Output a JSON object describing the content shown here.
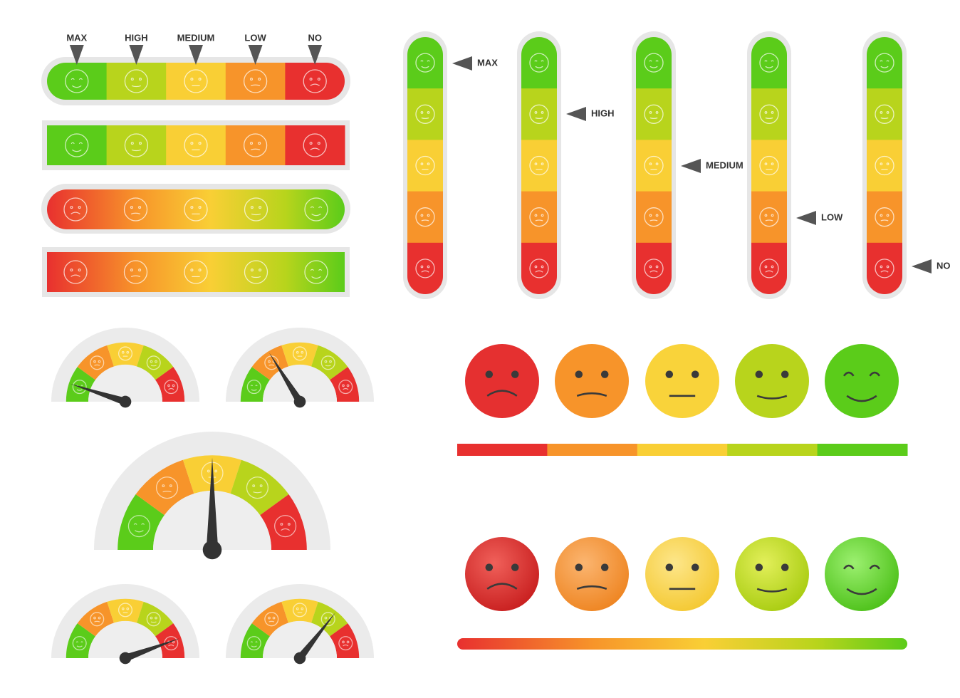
{
  "top_bar_labels": [
    "MAX",
    "HIGH",
    "MEDIUM",
    "LOW",
    "NO"
  ],
  "vertical_bar_labels": [
    "MAX",
    "HIGH",
    "MEDIUM",
    "LOW",
    "NO"
  ]
}
